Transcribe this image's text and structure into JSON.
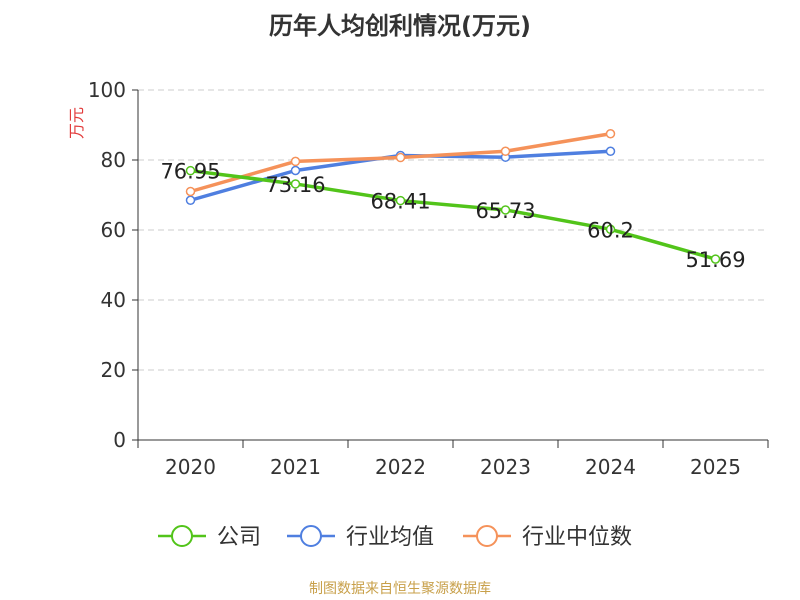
{
  "chart_data": {
    "type": "line",
    "title": "历年人均创利情况(万元)",
    "ylabel": "万元",
    "xlabel": "",
    "ylim": [
      0,
      100
    ],
    "yticks": [
      0,
      20,
      40,
      60,
      80,
      100
    ],
    "categories": [
      "2020",
      "2021",
      "2022",
      "2023",
      "2024",
      "2025"
    ],
    "grid": true,
    "legend_position": "bottom",
    "series": [
      {
        "name": "公司",
        "color": "#52c41a",
        "values": [
          76.95,
          73.16,
          68.41,
          65.73,
          60.2,
          51.69
        ],
        "labels": [
          "76.95",
          "73.16",
          "68.41",
          "65.73",
          "60.2",
          "51.69"
        ],
        "show_labels": true
      },
      {
        "name": "行业均值",
        "color": "#4f7fe0",
        "values": [
          68.5,
          77.0,
          81.3,
          80.8,
          82.5,
          null
        ],
        "show_labels": false
      },
      {
        "name": "行业中位数",
        "color": "#f5925a",
        "values": [
          71.0,
          79.6,
          80.7,
          82.5,
          87.5,
          null
        ],
        "show_labels": false
      }
    ]
  },
  "source_text": "制图数据来自恒生聚源数据库"
}
